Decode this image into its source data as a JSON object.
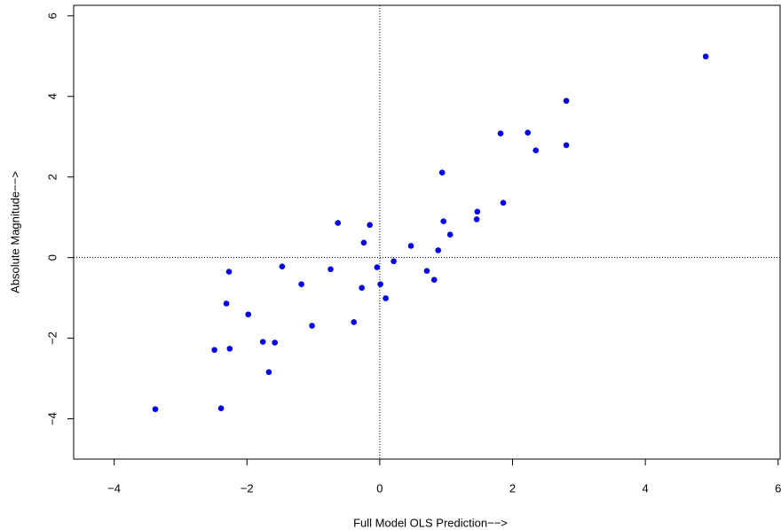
{
  "chart_data": {
    "type": "scatter",
    "x_label": "Full Model OLS Prediction−−>",
    "y_label": "Absolute Magnitude−−>",
    "x": [
      -3.38,
      -2.39,
      -2.49,
      -2.26,
      -2.31,
      -2.27,
      -1.98,
      -1.76,
      -1.58,
      -1.67,
      -1.47,
      -1.18,
      -1.02,
      -0.74,
      -0.63,
      -0.39,
      -0.27,
      -0.24,
      -0.15,
      -0.04,
      0.01,
      0.09,
      0.21,
      0.47,
      0.71,
      0.82,
      0.88,
      0.94,
      0.96,
      1.06,
      1.46,
      1.47,
      1.82,
      1.86,
      2.23,
      2.35,
      2.81,
      2.81,
      4.91
    ],
    "values": [
      -3.76,
      -3.74,
      -2.29,
      -2.26,
      -1.14,
      -0.35,
      -1.41,
      -2.09,
      -2.11,
      -2.84,
      -0.22,
      -0.66,
      -1.69,
      -0.29,
      0.86,
      -1.6,
      -0.75,
      0.37,
      0.81,
      -0.24,
      -0.66,
      -1.01,
      -0.09,
      0.29,
      -0.33,
      -0.55,
      0.18,
      2.11,
      0.9,
      0.57,
      0.95,
      1.14,
      3.08,
      1.36,
      3.1,
      2.66,
      3.89,
      2.79,
      4.99
    ],
    "color": "#0000ee",
    "xlim": [
      -4.61,
      6.03
    ],
    "ylim": [
      -5.0,
      6.26
    ],
    "xticks": [
      {
        "value": -4,
        "label": "−4"
      },
      {
        "value": -2,
        "label": "−2"
      },
      0,
      2,
      4,
      6
    ],
    "yticks": [
      {
        "value": -4,
        "label": "−4"
      },
      {
        "value": -2,
        "label": "−2"
      },
      0,
      2,
      4,
      6
    ],
    "zero_lines": true
  }
}
